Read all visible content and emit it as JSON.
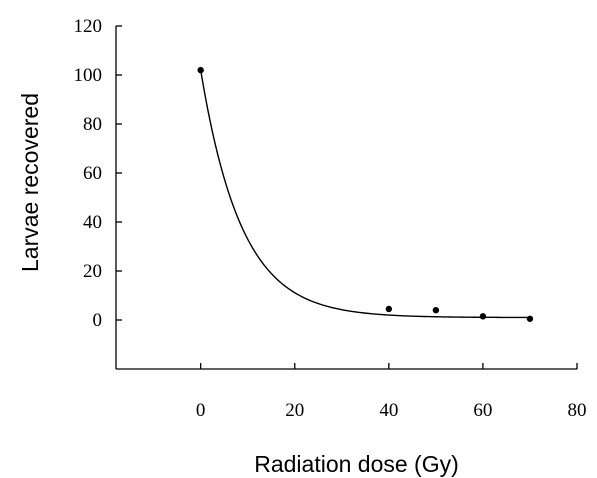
{
  "chart_data": {
    "type": "scatter",
    "title": "",
    "xlabel": "Radiation dose (Gy)",
    "ylabel": "Larvae recovered",
    "xlim": [
      -18,
      80
    ],
    "ylim": [
      -20,
      120
    ],
    "xticks": [
      0,
      20,
      40,
      60,
      80
    ],
    "yticks": [
      0,
      20,
      40,
      60,
      80,
      100,
      120
    ],
    "grid": false,
    "legend": "none",
    "series": [
      {
        "points": [
          {
            "x": 0,
            "y": 102
          },
          {
            "x": 40,
            "y": 4.5
          },
          {
            "x": 50,
            "y": 4.0
          },
          {
            "x": 60,
            "y": 1.5
          },
          {
            "x": 70,
            "y": 0.5
          }
        ],
        "fit": {
          "type": "exponential",
          "a": 101,
          "b": 0.115,
          "c": 1.0,
          "x_range": [
            0,
            70
          ]
        }
      }
    ],
    "colors": {
      "points": "#000000",
      "curve": "#000000",
      "axes": "#000000"
    }
  }
}
